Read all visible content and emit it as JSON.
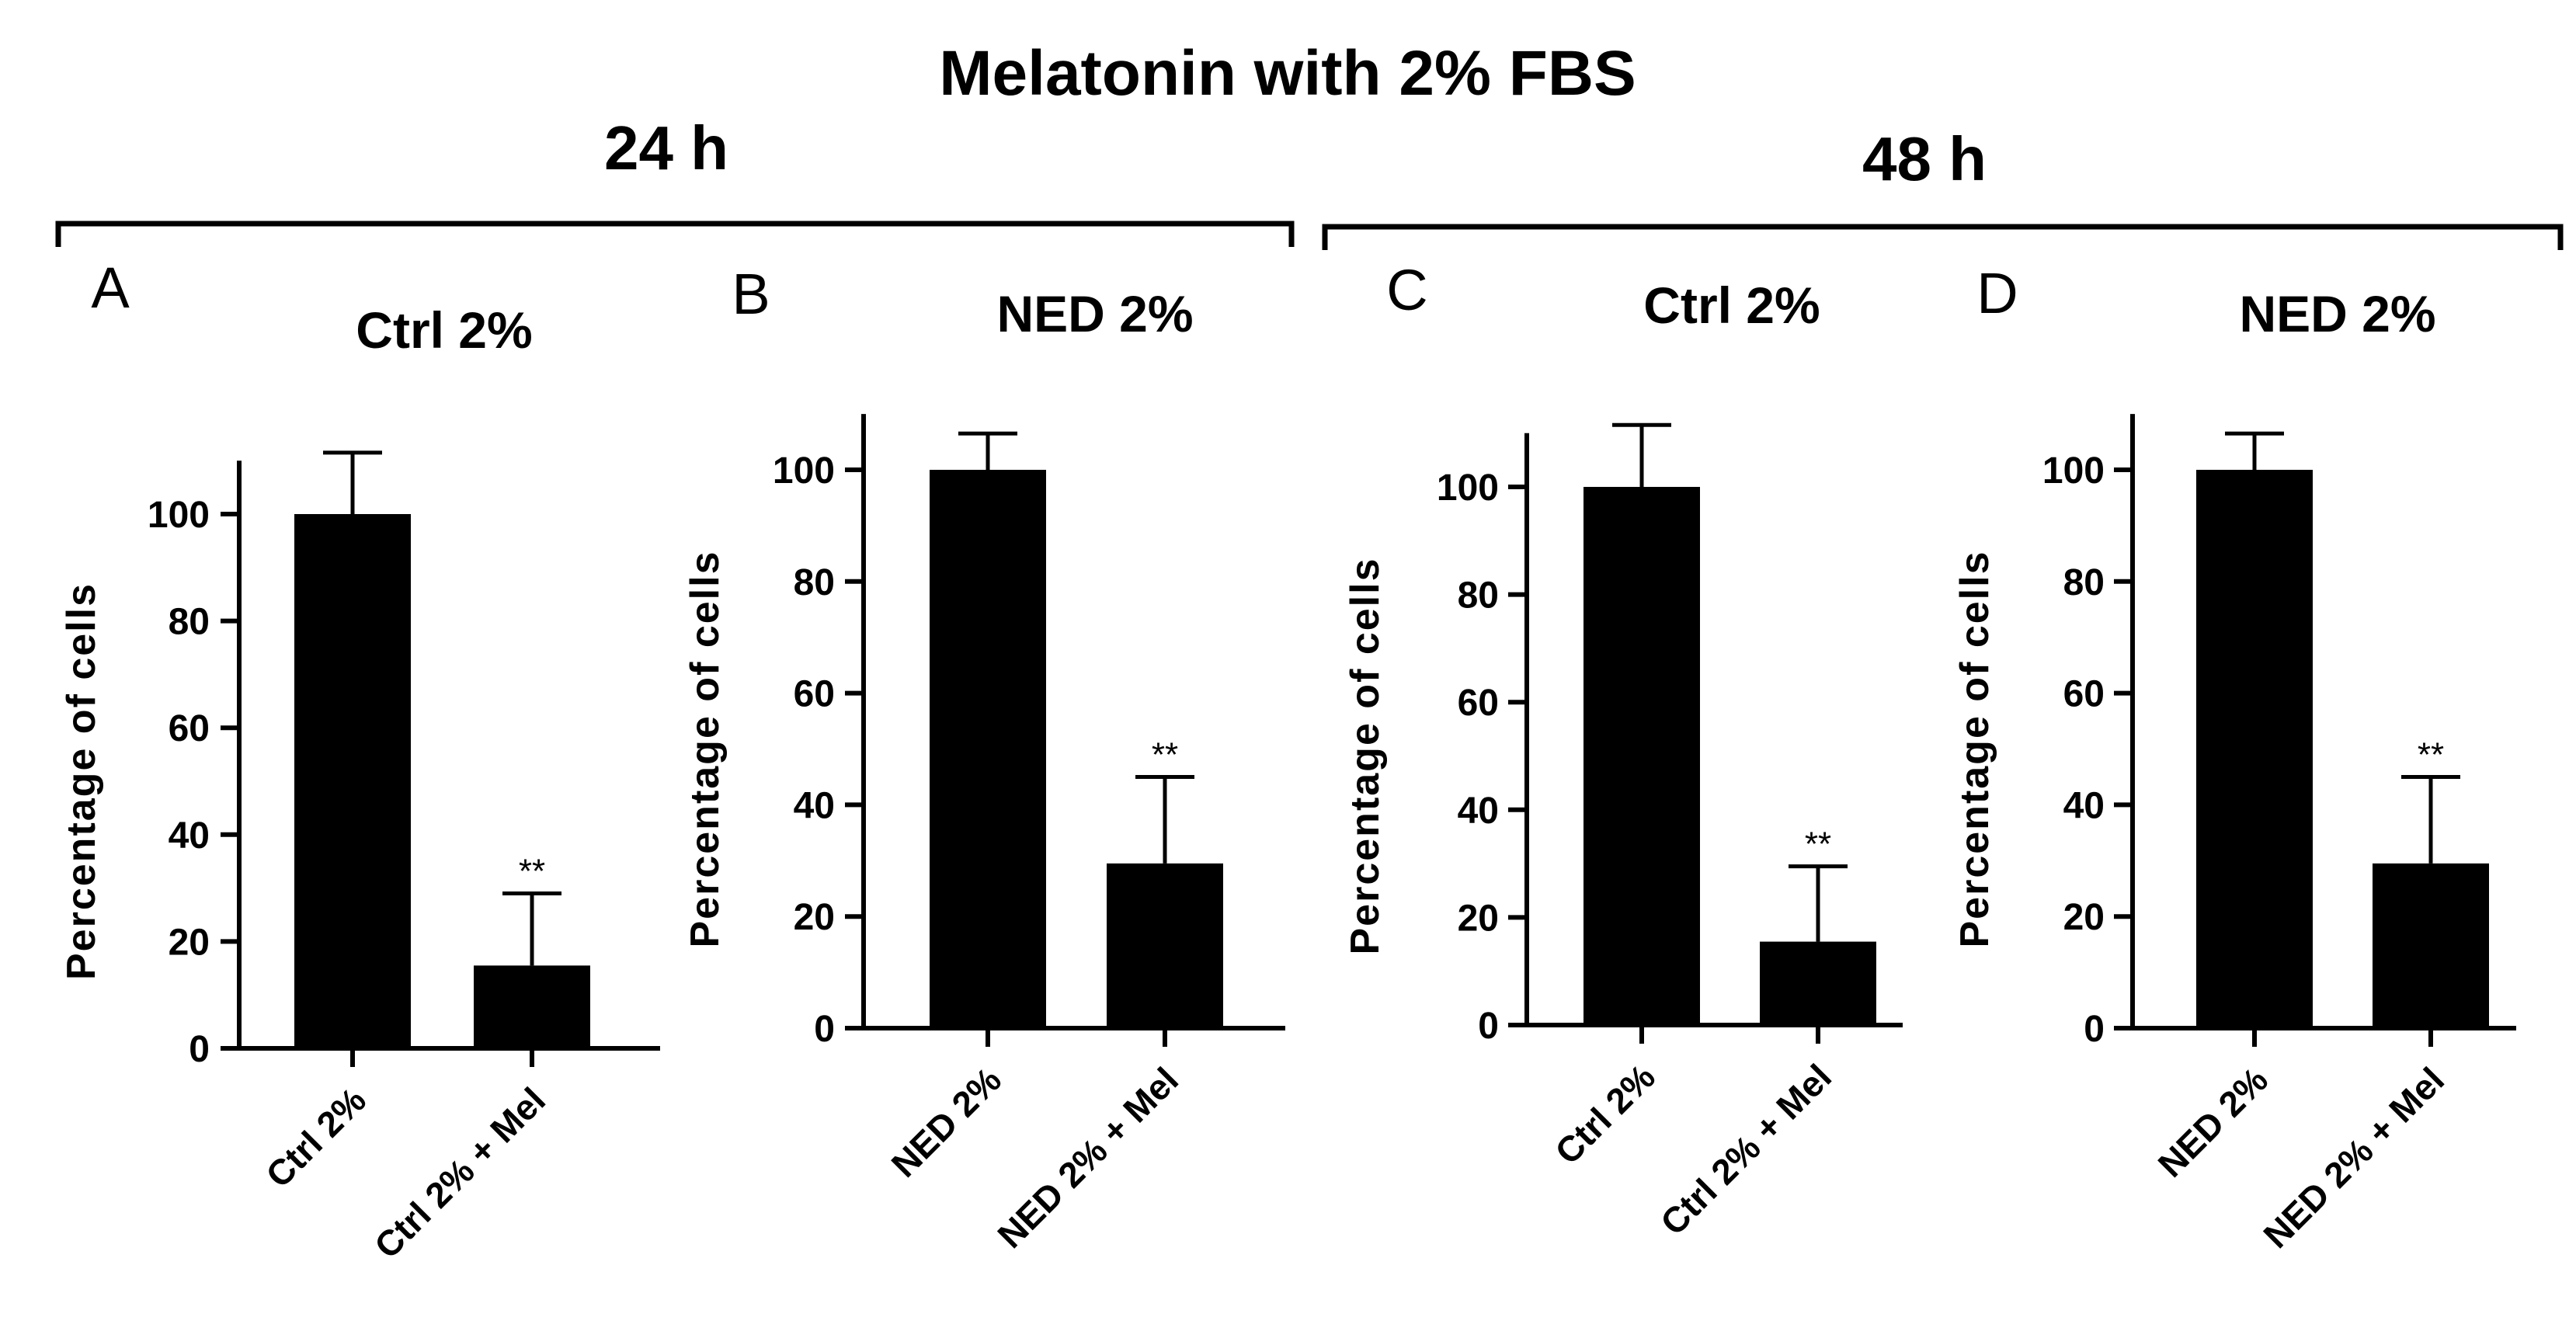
{
  "figure": {
    "title": "Melatonin with 2% FBS",
    "groups": [
      {
        "label": "24 h"
      },
      {
        "label": "48 h"
      }
    ]
  },
  "chart_data": [
    {
      "type": "bar",
      "panel": "A",
      "title": "Ctrl 2%",
      "categories": [
        "Ctrl 2%",
        "Ctrl 2% + Mel"
      ],
      "values": [
        100,
        15.5
      ],
      "errors": [
        11.5,
        13.5
      ],
      "significance": [
        "",
        "**"
      ],
      "ylabel": "Percentage of cells",
      "xlabel": "",
      "ylim": [
        0,
        110
      ],
      "yticks": [
        "0",
        "20",
        "40",
        "60",
        "80",
        "100"
      ],
      "color": "#000000"
    },
    {
      "type": "bar",
      "panel": "B",
      "title": "NED 2%",
      "categories": [
        "NED 2%",
        "NED 2% + Mel"
      ],
      "values": [
        100,
        29.5
      ],
      "errors": [
        6.5,
        15.5
      ],
      "significance": [
        "",
        "**"
      ],
      "ylabel": "Percentage of cells",
      "xlabel": "",
      "ylim": [
        0,
        110
      ],
      "yticks": [
        "0",
        "20",
        "40",
        "60",
        "80",
        "100"
      ],
      "color": "#000000"
    },
    {
      "type": "bar",
      "panel": "C",
      "title": "Ctrl 2%",
      "categories": [
        "Ctrl 2%",
        "Ctrl 2% + Mel"
      ],
      "values": [
        100,
        15.5
      ],
      "errors": [
        11.5,
        14
      ],
      "significance": [
        "",
        "**"
      ],
      "ylabel": "Percentage of cells",
      "xlabel": "",
      "ylim": [
        0,
        110
      ],
      "yticks": [
        "0",
        "20",
        "40",
        "60",
        "80",
        "100"
      ],
      "color": "#000000"
    },
    {
      "type": "bar",
      "panel": "D",
      "title": "NED 2%",
      "categories": [
        "NED 2%",
        "NED 2% + Mel"
      ],
      "values": [
        100,
        29.5
      ],
      "errors": [
        6.5,
        15.5
      ],
      "significance": [
        "",
        "**"
      ],
      "ylabel": "Percentage of cells",
      "xlabel": "",
      "ylim": [
        0,
        110
      ],
      "yticks": [
        "0",
        "20",
        "40",
        "60",
        "80",
        "100"
      ],
      "color": "#000000"
    }
  ]
}
